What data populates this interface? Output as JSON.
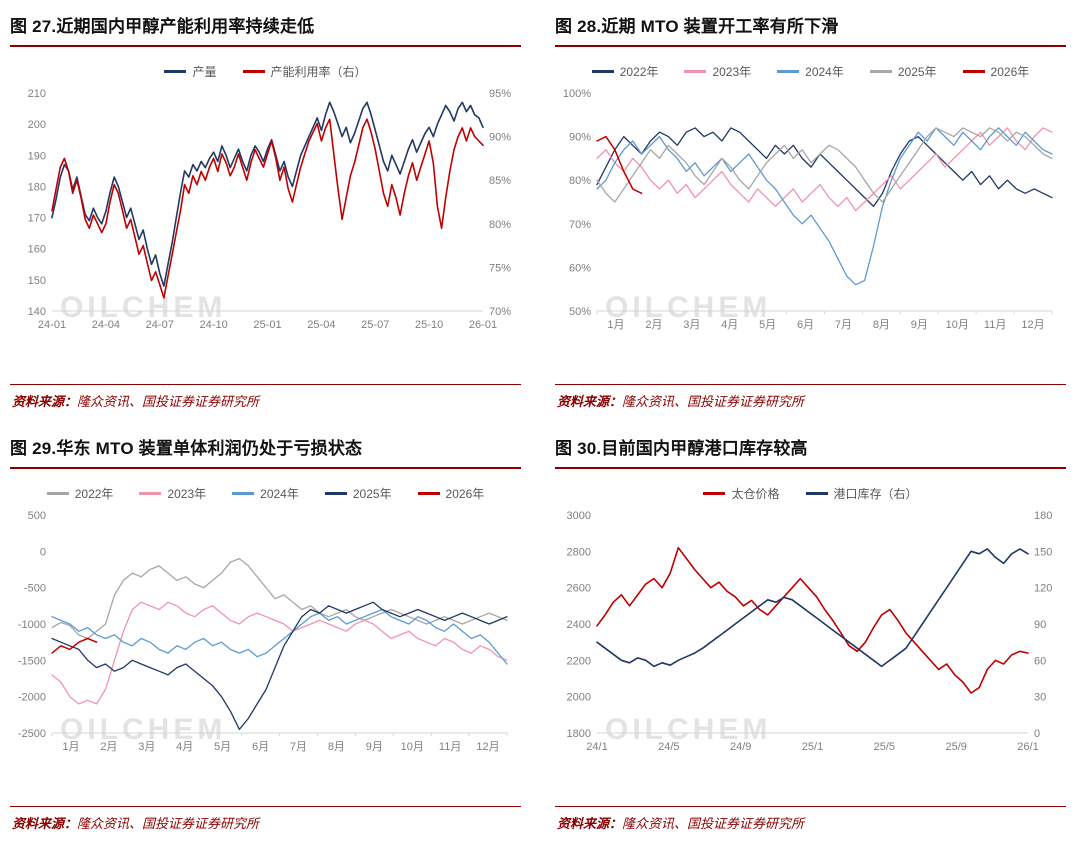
{
  "watermark": "OILCHEM",
  "source": {
    "label": "资料来源：",
    "body": "隆众资讯、国投证券证券研究所"
  },
  "colors": {
    "navy": "#1f3864",
    "red": "#c00000",
    "pink": "#f293ae",
    "lightblue": "#5b9bd5",
    "gray": "#a6a6a6",
    "rule_maroon": "#8b0000",
    "axis_text": "#808080",
    "baseline": "#d6d6d6"
  },
  "chart_data": [
    {
      "type": "line",
      "title": "图 27.近期国内甲醇产能利用率持续走低",
      "x_mode": "edge",
      "x_labels": [
        "24-01",
        "24-04",
        "24-07",
        "24-10",
        "25-01",
        "25-04",
        "25-07",
        "25-10",
        "26-01"
      ],
      "left_axis": {
        "min": 140,
        "max": 210,
        "ticks": [
          140,
          150,
          160,
          170,
          180,
          190,
          200,
          210
        ]
      },
      "right_axis": {
        "min": 70,
        "max": 95,
        "ticks": [
          70,
          75,
          80,
          85,
          90,
          95
        ],
        "suffix": "%"
      },
      "series": [
        {
          "name": "产量",
          "color": "#1f3864",
          "axis": "left",
          "width": 1.6,
          "values": [
            170,
            176,
            183,
            187,
            185,
            179,
            183,
            177,
            171,
            169,
            173,
            170,
            168,
            172,
            178,
            183,
            180,
            175,
            170,
            173,
            168,
            163,
            166,
            160,
            155,
            158,
            152,
            148,
            155,
            162,
            170,
            178,
            185,
            183,
            187,
            185,
            188,
            186,
            189,
            191,
            188,
            193,
            190,
            186,
            189,
            192,
            188,
            185,
            190,
            193,
            191,
            188,
            192,
            195,
            190,
            185,
            188,
            183,
            180,
            185,
            190,
            193,
            196,
            199,
            202,
            198,
            203,
            207,
            204,
            200,
            196,
            199,
            194,
            197,
            201,
            205,
            207,
            203,
            198,
            193,
            188,
            185,
            190,
            187,
            184,
            188,
            192,
            195,
            191,
            194,
            197,
            199,
            196,
            200,
            203,
            206,
            204,
            201,
            205,
            207,
            204,
            206,
            203,
            202,
            199
          ]
        },
        {
          "name": "产能利用率（右）",
          "color": "#c00000",
          "axis": "right",
          "width": 1.6,
          "values": [
            81.5,
            84,
            86.5,
            87.5,
            86,
            83.5,
            85,
            83,
            80.5,
            79.5,
            81,
            80,
            79,
            80,
            82.5,
            84.5,
            83.5,
            81.5,
            79.5,
            80.5,
            78.5,
            76.5,
            77.5,
            75.5,
            73.5,
            74.5,
            73,
            71.5,
            74,
            76.5,
            79,
            81.5,
            84.5,
            83.5,
            85.5,
            84.5,
            86,
            85,
            86.5,
            87.5,
            86,
            88,
            87,
            85.5,
            86.5,
            88,
            86.5,
            85,
            87,
            88.5,
            87.5,
            86.5,
            88,
            89.5,
            87.5,
            85,
            86.5,
            84,
            82.5,
            84.5,
            86.5,
            88,
            89.5,
            90.5,
            91.5,
            89.5,
            91,
            92,
            88,
            84,
            80.5,
            83,
            85.5,
            87,
            89,
            91,
            92,
            90.5,
            88.5,
            86,
            83.5,
            82,
            84.5,
            83,
            81,
            83.5,
            85.5,
            87,
            85,
            86.5,
            88,
            89.5,
            87,
            82,
            79.5,
            83,
            86,
            88.5,
            90,
            91,
            89.5,
            91,
            90,
            89.5,
            89
          ]
        }
      ]
    },
    {
      "type": "line",
      "title": "图 28.近期 MTO 装置开工率有所下滑",
      "x_mode": "center",
      "x_count": 52,
      "x_labels": [
        "1月",
        "2月",
        "3月",
        "4月",
        "5月",
        "6月",
        "7月",
        "8月",
        "9月",
        "10月",
        "11月",
        "12月"
      ],
      "left_axis": {
        "min": 50,
        "max": 100,
        "ticks": [
          50,
          60,
          70,
          80,
          90,
          100
        ],
        "suffix": "%"
      },
      "series": [
        {
          "name": "2022年",
          "color": "#1f3864",
          "axis": "left",
          "width": 1.3,
          "values": [
            79,
            83,
            87,
            90,
            88,
            86,
            89,
            91,
            90,
            88,
            91,
            92,
            90,
            91,
            89,
            92,
            91,
            89,
            87,
            85,
            88,
            86,
            88,
            85,
            83,
            86,
            84,
            82,
            80,
            78,
            76,
            74,
            77,
            82,
            86,
            89,
            90,
            88,
            86,
            84,
            82,
            80,
            82,
            79,
            81,
            78,
            80,
            78,
            77,
            78,
            77,
            76
          ]
        },
        {
          "name": "2023年",
          "color": "#f293ae",
          "axis": "left",
          "width": 1.3,
          "values": [
            85,
            87,
            84,
            82,
            85,
            83,
            80,
            78,
            80,
            77,
            79,
            76,
            78,
            80,
            82,
            79,
            77,
            75,
            78,
            76,
            74,
            76,
            78,
            75,
            77,
            79,
            76,
            74,
            76,
            73,
            75,
            77,
            79,
            81,
            78,
            80,
            82,
            84,
            86,
            83,
            85,
            87,
            89,
            91,
            88,
            90,
            92,
            89,
            87,
            90,
            92,
            91
          ]
        },
        {
          "name": "2024年",
          "color": "#5b9bd5",
          "axis": "left",
          "width": 1.3,
          "values": [
            78,
            80,
            84,
            87,
            89,
            86,
            88,
            90,
            87,
            85,
            82,
            84,
            81,
            83,
            85,
            82,
            84,
            86,
            83,
            80,
            78,
            75,
            72,
            70,
            72,
            69,
            66,
            62,
            58,
            56,
            57,
            65,
            74,
            80,
            85,
            88,
            91,
            89,
            92,
            90,
            88,
            91,
            89,
            87,
            90,
            92,
            90,
            88,
            91,
            89,
            87,
            86
          ]
        },
        {
          "name": "2025年",
          "color": "#a6a6a6",
          "axis": "left",
          "width": 1.3,
          "values": [
            80,
            77,
            75,
            78,
            81,
            84,
            87,
            85,
            88,
            86,
            84,
            81,
            79,
            82,
            85,
            83,
            80,
            78,
            81,
            84,
            86,
            88,
            85,
            87,
            84,
            86,
            88,
            87,
            85,
            83,
            80,
            77,
            75,
            78,
            81,
            84,
            87,
            90,
            92,
            91,
            90,
            92,
            91,
            90,
            92,
            91,
            89,
            91,
            90,
            88,
            86,
            85
          ]
        },
        {
          "name": "2026年",
          "color": "#c00000",
          "axis": "left",
          "width": 1.5,
          "values": [
            89,
            90,
            87,
            82,
            78,
            77
          ]
        }
      ]
    },
    {
      "type": "line",
      "title": "图 29.华东 MTO 装置单体利润仍处于亏损状态",
      "x_mode": "center",
      "x_count": 52,
      "x_labels": [
        "1月",
        "2月",
        "3月",
        "4月",
        "5月",
        "6月",
        "7月",
        "8月",
        "9月",
        "10月",
        "11月",
        "12月"
      ],
      "left_axis": {
        "min": -2500,
        "max": 500,
        "ticks": [
          -2500,
          -2000,
          -1500,
          -1000,
          -500,
          0,
          500
        ]
      },
      "series": [
        {
          "name": "2022年",
          "color": "#a6a6a6",
          "axis": "left",
          "width": 1.3,
          "values": [
            -1050,
            -980,
            -1020,
            -1150,
            -1200,
            -1100,
            -1000,
            -600,
            -400,
            -300,
            -350,
            -250,
            -200,
            -300,
            -400,
            -350,
            -450,
            -500,
            -400,
            -300,
            -150,
            -100,
            -200,
            -350,
            -500,
            -650,
            -600,
            -700,
            -800,
            -750,
            -850,
            -900,
            -850,
            -800,
            -900,
            -950,
            -900,
            -850,
            -800,
            -850,
            -900,
            -950,
            -1000,
            -950,
            -900,
            -950,
            -1000,
            -950,
            -900,
            -850,
            -900,
            -950
          ]
        },
        {
          "name": "2023年",
          "color": "#f293ae",
          "axis": "left",
          "width": 1.3,
          "values": [
            -1700,
            -1800,
            -2000,
            -2100,
            -2050,
            -2100,
            -1900,
            -1500,
            -1100,
            -800,
            -700,
            -750,
            -800,
            -700,
            -750,
            -850,
            -900,
            -800,
            -750,
            -850,
            -950,
            -1000,
            -900,
            -850,
            -900,
            -950,
            -1000,
            -1100,
            -1050,
            -1000,
            -950,
            -1000,
            -1050,
            -1100,
            -1000,
            -950,
            -1000,
            -1100,
            -1200,
            -1150,
            -1100,
            -1200,
            -1250,
            -1300,
            -1200,
            -1250,
            -1350,
            -1400,
            -1300,
            -1350,
            -1450,
            -1500
          ]
        },
        {
          "name": "2024年",
          "color": "#5b9bd5",
          "axis": "left",
          "width": 1.3,
          "values": [
            -900,
            -950,
            -1000,
            -1100,
            -1050,
            -1150,
            -1200,
            -1150,
            -1250,
            -1300,
            -1200,
            -1250,
            -1350,
            -1400,
            -1300,
            -1350,
            -1250,
            -1200,
            -1300,
            -1250,
            -1350,
            -1400,
            -1350,
            -1450,
            -1400,
            -1300,
            -1200,
            -1100,
            -1000,
            -900,
            -850,
            -950,
            -900,
            -1000,
            -950,
            -900,
            -850,
            -800,
            -900,
            -950,
            -1000,
            -900,
            -950,
            -1050,
            -1100,
            -1000,
            -1100,
            -1200,
            -1150,
            -1250,
            -1400,
            -1550
          ]
        },
        {
          "name": "2025年",
          "color": "#1f3864",
          "axis": "left",
          "width": 1.3,
          "values": [
            -1200,
            -1250,
            -1300,
            -1350,
            -1500,
            -1600,
            -1550,
            -1650,
            -1600,
            -1500,
            -1550,
            -1600,
            -1650,
            -1700,
            -1600,
            -1550,
            -1650,
            -1750,
            -1850,
            -2000,
            -2200,
            -2450,
            -2300,
            -2100,
            -1900,
            -1600,
            -1300,
            -1100,
            -900,
            -800,
            -850,
            -750,
            -800,
            -850,
            -800,
            -750,
            -700,
            -800,
            -850,
            -900,
            -850,
            -800,
            -850,
            -900,
            -950,
            -900,
            -850,
            -900,
            -950,
            -1000,
            -950,
            -900
          ]
        },
        {
          "name": "2026年",
          "color": "#c00000",
          "axis": "left",
          "width": 1.5,
          "values": [
            -1400,
            -1300,
            -1350,
            -1250,
            -1200,
            -1250
          ]
        }
      ]
    },
    {
      "type": "line",
      "title": "图 30.目前国内甲醇港口库存较高",
      "x_mode": "edge",
      "x_labels": [
        "24/1",
        "24/5",
        "24/9",
        "25/1",
        "25/5",
        "25/9",
        "26/1"
      ],
      "left_axis": {
        "min": 1800,
        "max": 3000,
        "ticks": [
          1800,
          2000,
          2200,
          2400,
          2600,
          2800,
          3000
        ]
      },
      "right_axis": {
        "min": 0,
        "max": 180,
        "ticks": [
          0,
          30,
          60,
          90,
          120,
          150,
          180
        ]
      },
      "series": [
        {
          "name": "太仓价格",
          "color": "#c00000",
          "axis": "left",
          "width": 1.6,
          "values": [
            2390,
            2450,
            2520,
            2560,
            2500,
            2560,
            2620,
            2650,
            2600,
            2680,
            2820,
            2760,
            2700,
            2650,
            2600,
            2630,
            2580,
            2550,
            2500,
            2530,
            2480,
            2450,
            2500,
            2550,
            2600,
            2650,
            2600,
            2550,
            2480,
            2420,
            2350,
            2280,
            2250,
            2300,
            2380,
            2450,
            2480,
            2420,
            2350,
            2300,
            2250,
            2200,
            2150,
            2180,
            2120,
            2080,
            2020,
            2050,
            2150,
            2200,
            2180,
            2230,
            2250,
            2240
          ]
        },
        {
          "name": "港口库存（右）",
          "color": "#1f3864",
          "axis": "right",
          "width": 1.6,
          "values": [
            75,
            70,
            65,
            60,
            58,
            62,
            60,
            55,
            58,
            56,
            60,
            63,
            66,
            70,
            75,
            80,
            85,
            90,
            95,
            100,
            105,
            110,
            108,
            112,
            110,
            105,
            100,
            95,
            90,
            85,
            80,
            75,
            70,
            65,
            60,
            55,
            60,
            65,
            70,
            80,
            90,
            100,
            110,
            120,
            130,
            140,
            150,
            148,
            152,
            145,
            140,
            148,
            152,
            148
          ]
        }
      ]
    }
  ]
}
